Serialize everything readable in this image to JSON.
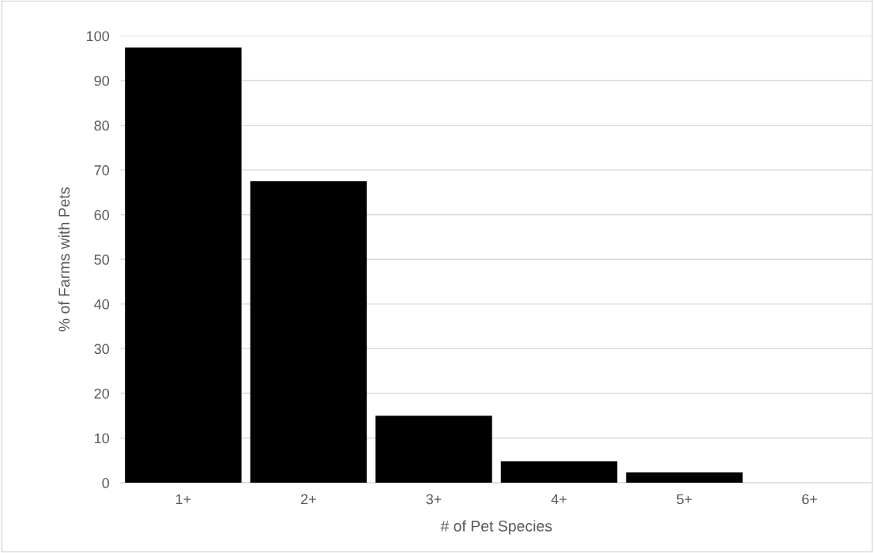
{
  "chart_data": {
    "type": "bar",
    "xlabel": "# of Pet Species",
    "ylabel": "% of Farms with Pets",
    "categories": [
      "1+",
      "2+",
      "3+",
      "4+",
      "5+",
      "6+"
    ],
    "values": [
      97.4,
      67.5,
      15,
      4.8,
      2.3,
      0
    ],
    "color": "#000000",
    "ylim": [
      0,
      100
    ],
    "yticks": [
      0,
      10,
      20,
      30,
      40,
      50,
      60,
      70,
      80,
      90,
      100
    ],
    "grid": "y"
  }
}
